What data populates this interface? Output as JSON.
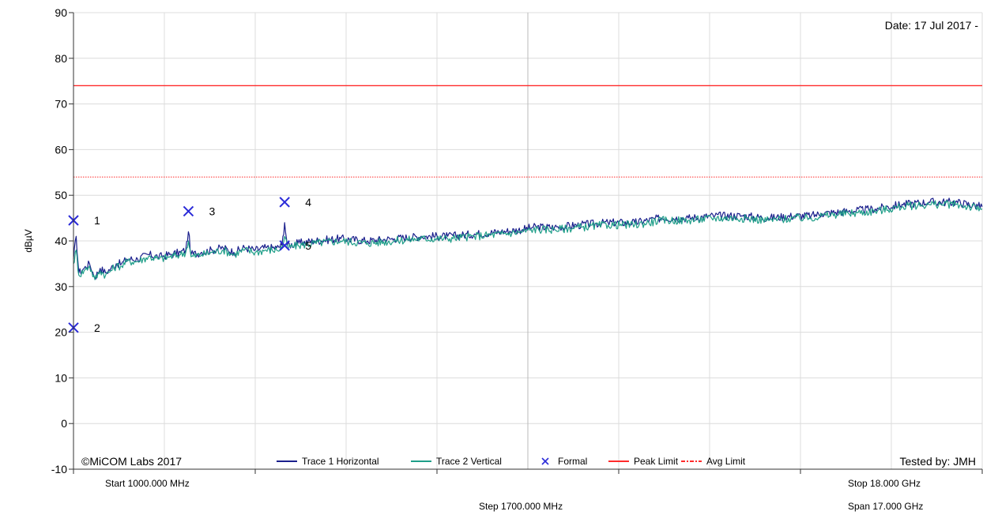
{
  "chart_data": {
    "type": "line",
    "ylabel": "dBµV",
    "ylim": [
      -10,
      90
    ],
    "yticks": [
      -10,
      0,
      10,
      20,
      30,
      40,
      50,
      60,
      70,
      80,
      90
    ],
    "xlim_mhz": [
      1000,
      18000
    ],
    "x_unit": "MHz",
    "grid": true,
    "date_text": "Date: 17 Jul 2017 -",
    "copyright": "©MiCOM Labs 2017",
    "tested_by": "Tested by: JMH",
    "start_label": "Start 1000.000 MHz",
    "step_label": "Step 1700.000 MHz",
    "stop_label": "Stop 18.000 GHz",
    "span_label": "Span 17.000 GHz",
    "legend": [
      {
        "label": "Trace 1 Horizontal",
        "color": "#1a1f8c",
        "style": "line"
      },
      {
        "label": "Trace 2 Vertical",
        "color": "#1e9e88",
        "style": "line"
      },
      {
        "label": "Formal",
        "color": "#2b2bd8",
        "style": "x"
      },
      {
        "label": "Peak Limit",
        "color": "#ff2a2a",
        "style": "line"
      },
      {
        "label": "Avg Limit",
        "color": "#ff2a2a",
        "style": "dashdot"
      }
    ],
    "limits": [
      {
        "name": "Peak Limit",
        "value": 74,
        "color": "#ff2a2a"
      },
      {
        "name": "Avg Limit",
        "value": 54,
        "color": "#ff2a2a"
      }
    ],
    "markers": [
      {
        "label": "1",
        "x": 1000,
        "y": 44.5
      },
      {
        "label": "2",
        "x": 1000,
        "y": 21
      },
      {
        "label": "3",
        "x": 3150,
        "y": 46.5
      },
      {
        "label": "4",
        "x": 4950,
        "y": 48.5
      },
      {
        "label": "5",
        "x": 4950,
        "y": 39
      }
    ],
    "series": [
      {
        "name": "Trace 1 Horizontal",
        "color": "#1a1f8c",
        "x": [
          1000,
          1050,
          1100,
          1200,
          1300,
          1400,
          1500,
          1600,
          1700,
          1800,
          1900,
          2000,
          2200,
          2400,
          2600,
          2800,
          3000,
          3100,
          3150,
          3200,
          3400,
          3600,
          3800,
          4000,
          4200,
          4400,
          4600,
          4800,
          4900,
          4950,
          5000,
          5200,
          5500,
          6000,
          6500,
          7000,
          7500,
          8000,
          8500,
          9000,
          9400,
          9600,
          10000,
          10500,
          11000,
          11500,
          12000,
          12500,
          13000,
          13500,
          14000,
          14500,
          14800,
          15000,
          15500,
          16000,
          16500,
          17000,
          17500,
          18000
        ],
        "y": [
          36,
          41,
          33,
          34,
          35,
          32,
          34,
          33,
          34,
          35,
          35,
          36,
          36,
          37,
          36.5,
          37,
          37.5,
          38,
          42,
          37,
          37.5,
          38,
          38.5,
          37.5,
          38.5,
          38,
          38.5,
          38.5,
          39,
          44,
          39,
          39.5,
          40,
          40.5,
          40,
          40.5,
          41,
          41,
          41.5,
          42,
          42.5,
          43,
          43,
          43.5,
          44,
          44,
          45,
          45,
          45.5,
          45.5,
          45,
          45.5,
          45.5,
          46,
          46.5,
          47,
          48,
          48.5,
          48.5,
          47.5
        ]
      },
      {
        "name": "Trace 2 Vertical",
        "color": "#1e9e88",
        "x": [
          1000,
          1050,
          1100,
          1200,
          1300,
          1400,
          1500,
          1600,
          1700,
          1800,
          1900,
          2000,
          2200,
          2400,
          2600,
          2800,
          3000,
          3100,
          3150,
          3200,
          3400,
          3600,
          3800,
          4000,
          4200,
          4400,
          4600,
          4800,
          4900,
          4950,
          5000,
          5200,
          5500,
          6000,
          6500,
          7000,
          7500,
          8000,
          8500,
          9000,
          9400,
          9600,
          10000,
          10500,
          11000,
          11500,
          12000,
          12500,
          13000,
          13500,
          14000,
          14500,
          14800,
          15000,
          15500,
          16000,
          16500,
          17000,
          17500,
          18000
        ],
        "y": [
          35,
          38,
          32.5,
          33.5,
          34.5,
          31.5,
          33.5,
          32.5,
          33.5,
          34.5,
          34.5,
          35.5,
          35.5,
          36.5,
          36,
          36.5,
          37,
          37.5,
          40,
          36.5,
          37,
          37.5,
          38,
          37,
          38,
          37.5,
          38,
          38,
          38.5,
          41,
          38.5,
          39,
          39.5,
          40,
          39.5,
          40,
          40.5,
          40.5,
          41,
          41.5,
          42,
          42.5,
          42.5,
          43,
          43.5,
          43.5,
          44.5,
          44.5,
          45,
          45,
          44.5,
          45,
          45,
          45.5,
          46,
          46.5,
          47.5,
          48,
          48,
          47
        ]
      }
    ]
  }
}
